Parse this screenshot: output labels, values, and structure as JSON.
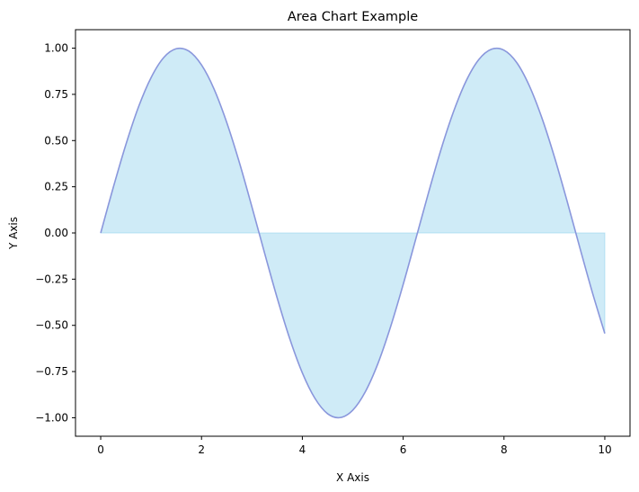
{
  "chart_data": {
    "type": "area",
    "title": "Area Chart Example",
    "xlabel": "X Axis",
    "ylabel": "Y Axis",
    "xlim": [
      -0.5,
      10.5
    ],
    "ylim": [
      -1.1,
      1.1
    ],
    "x_ticks": [
      0,
      2,
      4,
      6,
      8,
      10
    ],
    "x_tick_labels": [
      "0",
      "2",
      "4",
      "6",
      "8",
      "10"
    ],
    "y_ticks": [
      1.0,
      0.75,
      0.5,
      0.25,
      0.0,
      -0.25,
      -0.5,
      -0.75,
      -1.0
    ],
    "y_tick_labels": [
      "1.00",
      "0.75",
      "0.50",
      "0.25",
      "0.00",
      "−0.25",
      "−0.50",
      "−0.75",
      "−1.00"
    ],
    "grid": false,
    "fill_color": "#87CEEB",
    "fill_opacity": 0.4,
    "line_color": "#8a97dc",
    "series": [
      {
        "x": [
          0,
          0.25,
          0.5,
          0.75,
          1,
          1.25,
          1.5,
          1.75,
          2,
          2.25,
          2.5,
          2.75,
          3,
          3.25,
          3.5,
          3.75,
          4,
          4.25,
          4.5,
          4.75,
          5,
          5.25,
          5.5,
          5.75,
          6,
          6.25,
          6.5,
          6.75,
          7,
          7.25,
          7.5,
          7.75,
          8,
          8.25,
          8.5,
          8.75,
          9,
          9.25,
          9.5,
          9.75,
          10
        ],
        "y": [
          0.0,
          0.247,
          0.479,
          0.682,
          0.841,
          0.949,
          0.997,
          0.984,
          0.909,
          0.778,
          0.598,
          0.382,
          0.141,
          -0.108,
          -0.351,
          -0.572,
          -0.757,
          -0.895,
          -0.978,
          -0.999,
          -0.959,
          -0.859,
          -0.706,
          -0.508,
          -0.279,
          -0.033,
          0.215,
          0.451,
          0.657,
          0.823,
          0.938,
          0.994,
          0.989,
          0.923,
          0.798,
          0.624,
          0.412,
          0.174,
          -0.075,
          -0.319,
          -0.544
        ]
      }
    ]
  }
}
